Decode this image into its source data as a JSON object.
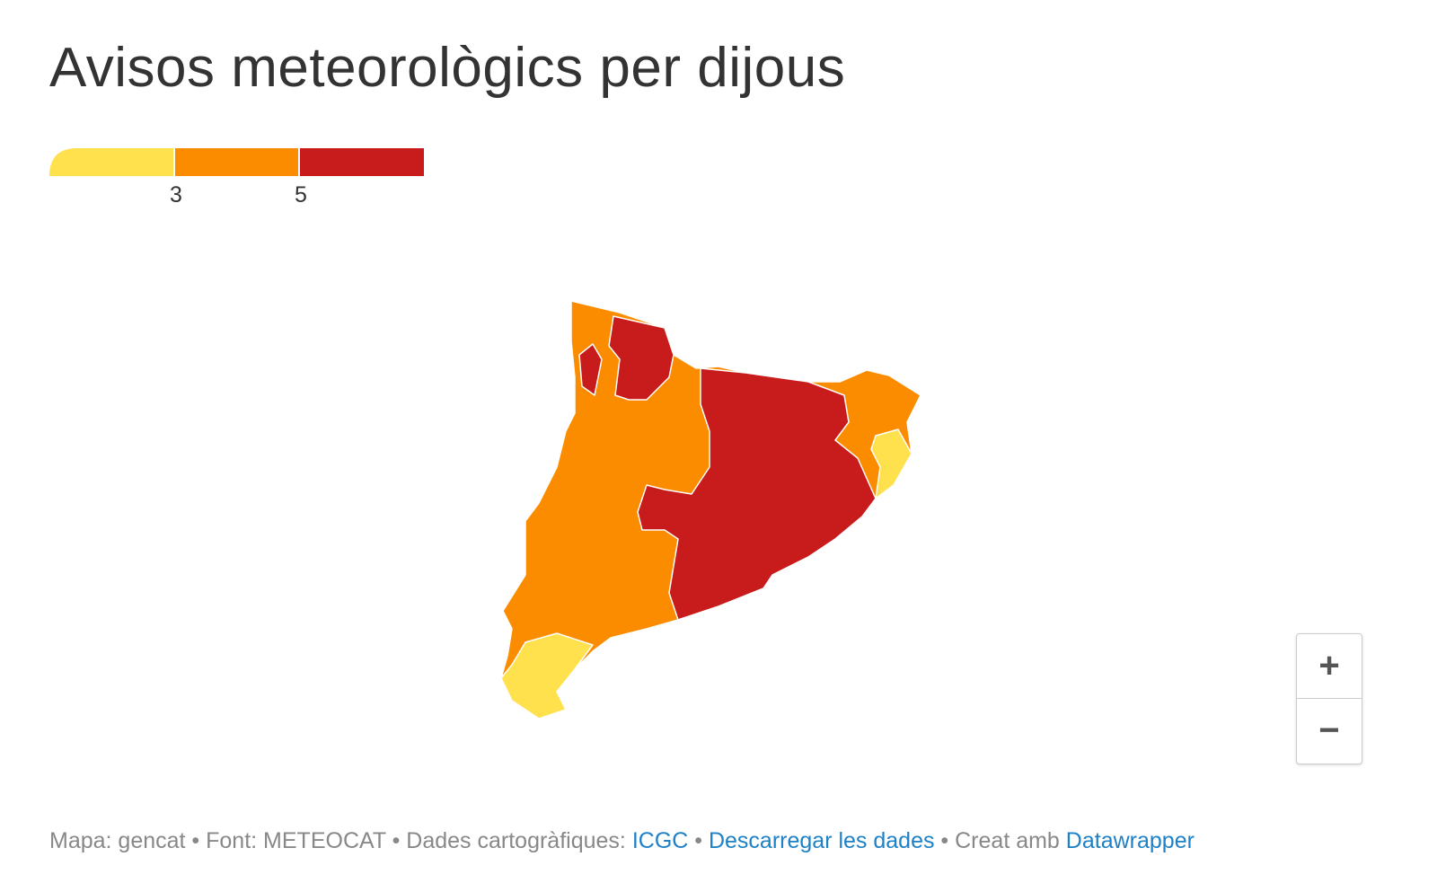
{
  "title": "Avisos meteorològics per dijous",
  "legend": {
    "colors": [
      "#ffe14d",
      "#fb8c00",
      "#c81b1b"
    ],
    "ticks": [
      3,
      5
    ]
  },
  "zoom": {
    "in": "+",
    "out": "−"
  },
  "footer": [
    {
      "text": "Mapa: gencat • Font: METEOCAT • Dades cartogràfiques: ",
      "link": false
    },
    {
      "text": "ICGC",
      "link": true
    },
    {
      "text": " • ",
      "link": false
    },
    {
      "text": "Descarregar les dades",
      "link": true
    },
    {
      "text": " • Creat amb ",
      "link": false
    },
    {
      "text": "Datawrapper",
      "link": true
    }
  ]
}
